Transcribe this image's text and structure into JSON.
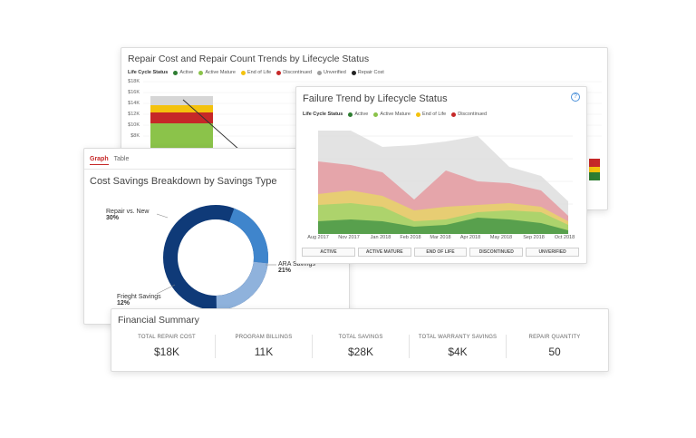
{
  "repair_card": {
    "title": "Repair Cost and Repair Count Trends by Lifecycle Status",
    "legend_label": "Life Cycle Status",
    "legend": [
      {
        "name": "Active",
        "color": "#2e7d32"
      },
      {
        "name": "Active Mature",
        "color": "#8bc34a"
      },
      {
        "name": "End of Life",
        "color": "#f4c20d"
      },
      {
        "name": "Discontinued",
        "color": "#c62828"
      },
      {
        "name": "Unverified",
        "color": "#9e9e9e"
      },
      {
        "name": "Repair Cost",
        "color": "#222222"
      }
    ],
    "yticks": [
      "$18K",
      "$16K",
      "$14K",
      "$12K",
      "$10K",
      "$8K"
    ]
  },
  "failure_card": {
    "title": "Failure Trend by Lifecycle Status",
    "help_icon": "question-icon",
    "legend_label": "Life Cycle Status",
    "legend": [
      {
        "name": "Active",
        "color": "#2e7d32"
      },
      {
        "name": "Active Mature",
        "color": "#8bc34a"
      },
      {
        "name": "End of Life",
        "color": "#f4c20d"
      },
      {
        "name": "Discontinued",
        "color": "#c62828"
      }
    ],
    "xaxis": [
      "Aug 2017",
      "Nov 2017",
      "Jan 2018",
      "Feb 2018",
      "Mar 2018",
      "Apr 2018",
      "May 2018",
      "Sep 2018",
      "Oct 2018"
    ],
    "status_buttons": [
      "ACTIVE",
      "ACTIVE MATURE",
      "END OF LIFE",
      "DISCONTINUED",
      "UNVERIFIED"
    ]
  },
  "savings_card": {
    "tabs": [
      "Graph",
      "Table"
    ],
    "title": "Cost Savings Breakdown by Savings Type",
    "segments": [
      {
        "name": "Repair vs. New",
        "pct": "30%",
        "value": 30,
        "color": "#2f6fb6"
      },
      {
        "name": "ARA Savings",
        "pct": "21%",
        "value": 21,
        "color": "#3f85cc"
      },
      {
        "name": "Frieght Savings",
        "pct": "12%",
        "value": 12,
        "color": "#8fb2dc"
      }
    ],
    "remaining_color": "#0f3a78"
  },
  "financial": {
    "title": "Financial Summary",
    "metrics": [
      {
        "label": "TOTAL REPAIR COST",
        "value": "$18K"
      },
      {
        "label": "PROGRAM BILLINGS",
        "value": "11K"
      },
      {
        "label": "TOTAL SAVINGS",
        "value": "$28K"
      },
      {
        "label": "TOTAL WARRANTY SAVINGS",
        "value": "$4K"
      },
      {
        "label": "REPAIR QUANTITY",
        "value": "50"
      }
    ]
  }
}
